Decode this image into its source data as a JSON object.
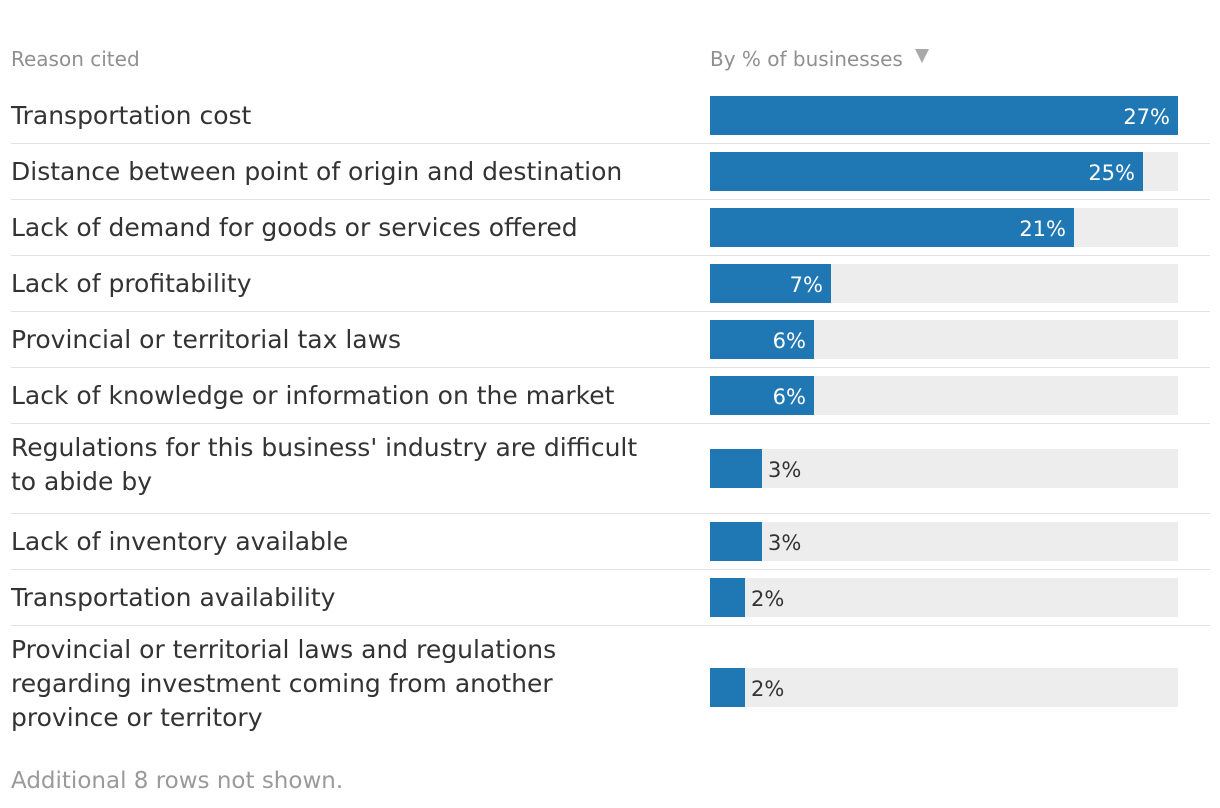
{
  "header": {
    "reason_label": "Reason cited",
    "value_label": "By % of businesses",
    "sort_icon": "sort-descending-triangle-icon"
  },
  "chart_data": {
    "type": "bar",
    "orientation": "horizontal",
    "categories": [
      "Transportation cost",
      "Distance between point of origin and destination",
      "Lack of demand for goods or services offered",
      "Lack of profitability",
      "Provincial or territorial tax laws",
      "Lack of knowledge or information on the market",
      "Regulations for this business' industry are difficult to abide by",
      "Lack of inventory available",
      "Transportation availability",
      "Provincial or territorial laws and regulations regarding investment coming from another province or territory"
    ],
    "values": [
      27,
      25,
      21,
      7,
      6,
      6,
      3,
      3,
      2,
      2
    ],
    "value_labels": [
      "27%",
      "25%",
      "21%",
      "7%",
      "6%",
      "6%",
      "3%",
      "3%",
      "2%",
      "2%"
    ],
    "xlim": [
      0,
      27
    ],
    "bar_color": "#1f77b4",
    "track_color": "#ededed"
  },
  "footer": {
    "note": "Additional 8 rows not shown."
  }
}
